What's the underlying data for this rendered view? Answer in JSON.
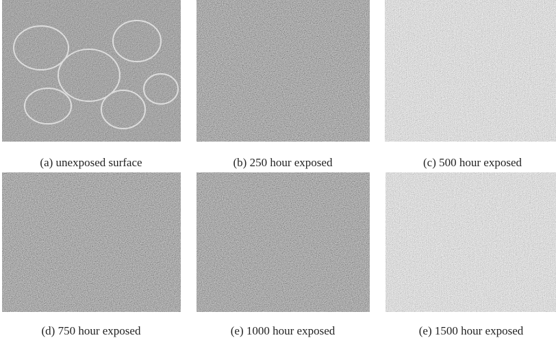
{
  "figure": {
    "panels": [
      {
        "caption": "(a) unexposed surface"
      },
      {
        "caption": "(b) 250 hour exposed"
      },
      {
        "caption": "(c) 500 hour exposed"
      },
      {
        "caption": "(d) 750 hour exposed"
      },
      {
        "caption": "(e) 1000 hour exposed"
      },
      {
        "caption": "(e) 1500 hour exposed"
      }
    ]
  }
}
